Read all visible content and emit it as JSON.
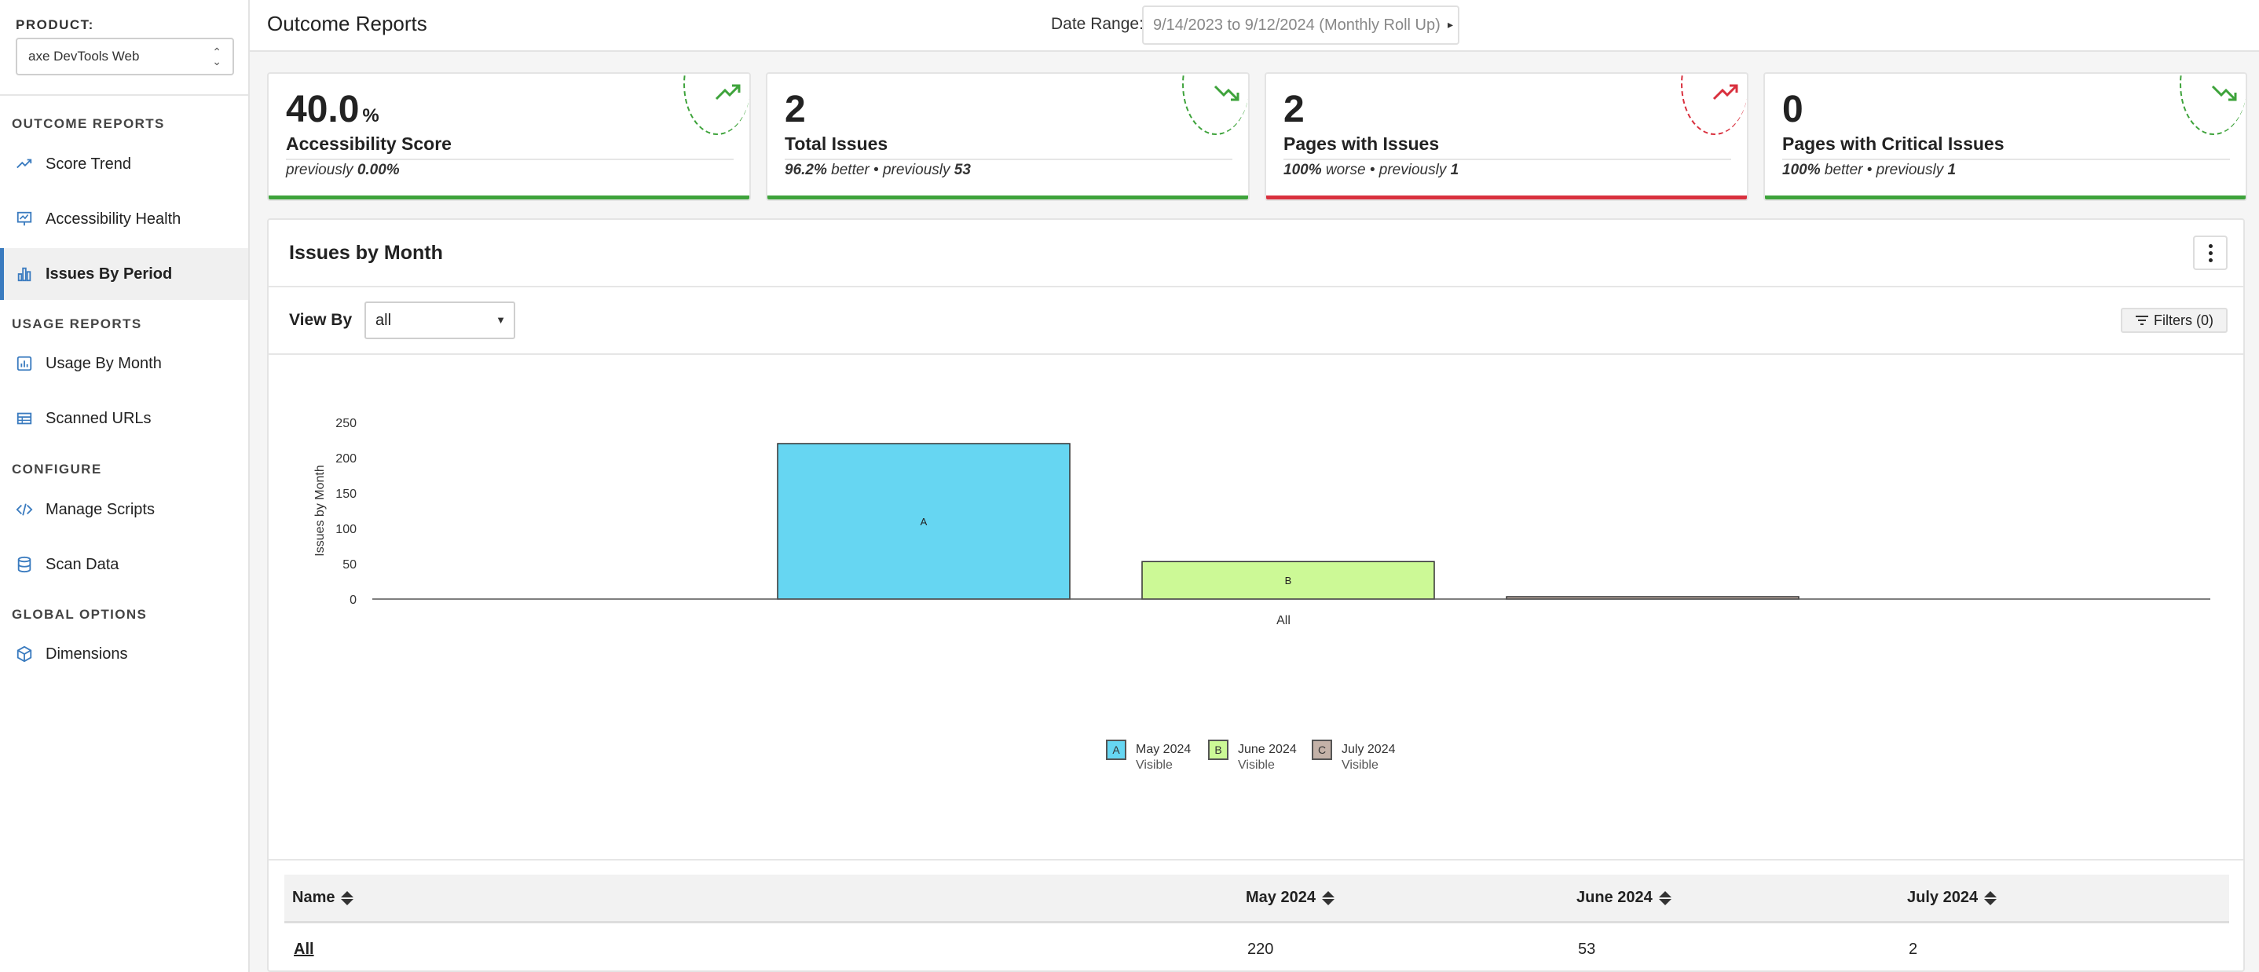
{
  "sidebar": {
    "product_label": "PRODUCT:",
    "product_value": "axe DevTools Web",
    "sections": [
      {
        "header": "OUTCOME REPORTS"
      },
      {
        "header": "USAGE REPORTS"
      },
      {
        "header": "CONFIGURE"
      },
      {
        "header": "GLOBAL OPTIONS"
      }
    ],
    "items": [
      {
        "label": "Score Trend",
        "icon": "trend-line-icon"
      },
      {
        "label": "Accessibility Health",
        "icon": "presentation-chart-icon"
      },
      {
        "label": "Issues By Period",
        "icon": "bar-chart-icon",
        "active": true
      },
      {
        "label": "Usage By Month",
        "icon": "usage-chart-icon"
      },
      {
        "label": "Scanned URLs",
        "icon": "table-icon"
      },
      {
        "label": "Manage Scripts",
        "icon": "code-icon"
      },
      {
        "label": "Scan Data",
        "icon": "database-icon"
      },
      {
        "label": "Dimensions",
        "icon": "cube-icon"
      }
    ]
  },
  "header": {
    "title": "Outcome Reports",
    "date_label": "Date Range:",
    "date_value": "9/14/2023 to 9/12/2024 (Monthly Roll Up)"
  },
  "kpis": [
    {
      "value": "40.0",
      "unit": "%",
      "title": "Accessibility Score",
      "sub_pre": "previously ",
      "sub_bold": "0.00%",
      "sub_mid": "",
      "sub_bold2": "",
      "trend": "up",
      "color": "#3ea33b"
    },
    {
      "value": "2",
      "unit": "",
      "title": "Total Issues",
      "sub_pre": "",
      "sub_bold": "96.2%",
      "sub_mid": " better • previously ",
      "sub_bold2": "53",
      "trend": "down",
      "color": "#3ea33b"
    },
    {
      "value": "2",
      "unit": "",
      "title": "Pages with Issues",
      "sub_pre": "",
      "sub_bold": "100%",
      "sub_mid": " worse • previously ",
      "sub_bold2": "1",
      "trend": "up",
      "color": "#d9303e"
    },
    {
      "value": "0",
      "unit": "",
      "title": "Pages with Critical Issues",
      "sub_pre": "",
      "sub_bold": "100%",
      "sub_mid": " better • previously ",
      "sub_bold2": "1",
      "trend": "down",
      "color": "#3ea33b"
    }
  ],
  "panel": {
    "title": "Issues by Month",
    "view_by_label": "View By",
    "view_by_value": "all",
    "filters_label": "Filters (0)"
  },
  "chart_data": {
    "type": "bar",
    "categories": [
      "All"
    ],
    "ylabel": "Issues by Month",
    "xlabel": "",
    "ylim": [
      0,
      250
    ],
    "yticks": [
      0,
      50,
      100,
      150,
      200,
      250
    ],
    "series": [
      {
        "name": "May 2024",
        "letter": "A",
        "status": "Visible",
        "values": [
          220
        ],
        "color": "#66d6f2"
      },
      {
        "name": "June 2024",
        "letter": "B",
        "status": "Visible",
        "values": [
          53
        ],
        "color": "#ccf996"
      },
      {
        "name": "July 2024",
        "letter": "C",
        "status": "Visible",
        "values": [
          2
        ],
        "color": "#c4b2a8"
      }
    ]
  },
  "table": {
    "columns": [
      "Name",
      "May 2024",
      "June 2024",
      "July 2024"
    ],
    "rows": [
      [
        "All",
        "220",
        "53",
        "2"
      ]
    ]
  }
}
